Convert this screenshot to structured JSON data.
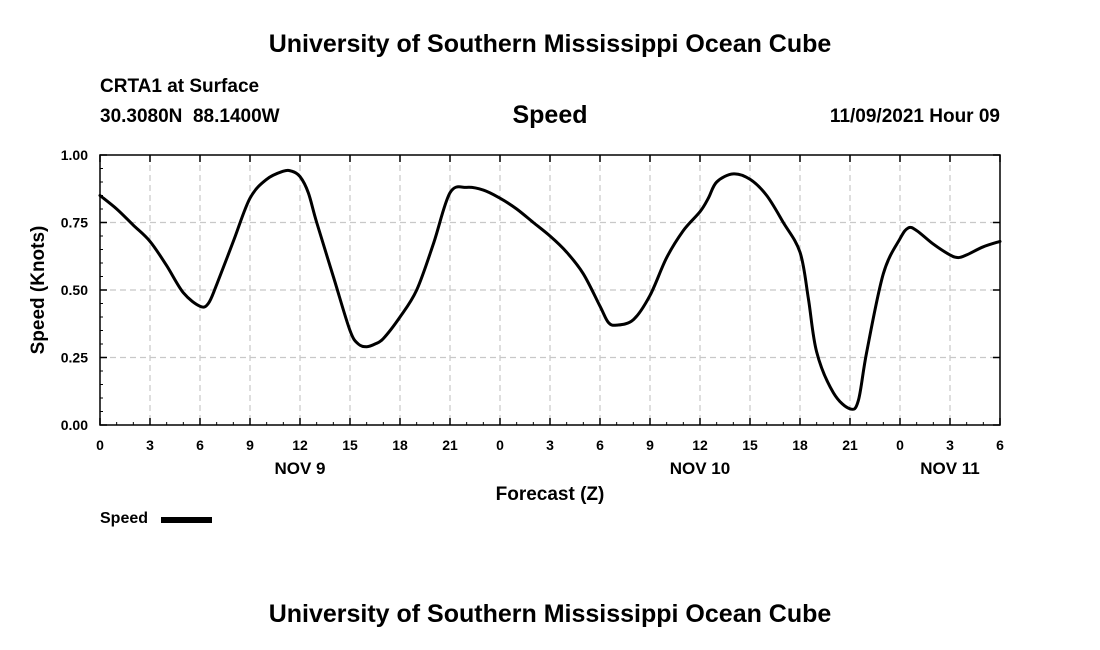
{
  "page_title": "University of Southern Mississippi Ocean Cube",
  "station": "CRTA1 at Surface",
  "coordinates": "30.3080N  88.1400W",
  "variable": "Speed",
  "issued": "11/09/2021 Hour 09",
  "footer_title": "University of Southern Mississippi Ocean Cube",
  "legend": {
    "label": "Speed"
  },
  "colors": {
    "line": "#000000",
    "grid": "#c8c8c8",
    "background": "#ffffff"
  },
  "chart_data": {
    "type": "line",
    "title": "Speed",
    "xlabel": "Forecast (Z)",
    "ylabel": "Speed (Knots)",
    "xlim": [
      0,
      54
    ],
    "ylim": [
      0,
      1
    ],
    "grid": true,
    "legend_position": "bottom-left",
    "x_ticks": [
      0,
      3,
      6,
      9,
      12,
      15,
      18,
      21,
      24,
      27,
      30,
      33,
      36,
      39,
      42,
      45,
      48,
      51,
      54
    ],
    "x_tick_labels": [
      "0",
      "3",
      "6",
      "9",
      "12",
      "15",
      "18",
      "21",
      "0",
      "3",
      "6",
      "9",
      "12",
      "15",
      "18",
      "21",
      "0",
      "3",
      "6"
    ],
    "y_ticks": [
      0,
      0.25,
      0.5,
      0.75,
      1.0
    ],
    "y_tick_labels": [
      "0.00",
      "0.25",
      "0.50",
      "0.75",
      "1.00"
    ],
    "date_labels": [
      {
        "x": 12,
        "label": "NOV 9"
      },
      {
        "x": 36,
        "label": "NOV 10"
      },
      {
        "x": 51,
        "label": "NOV 11"
      }
    ],
    "series": [
      {
        "name": "Speed",
        "x": [
          0,
          1,
          2,
          3,
          4,
          5,
          6,
          6.5,
          7,
          8,
          9,
          10,
          11,
          11.5,
          12,
          12.5,
          13,
          14,
          15,
          15.5,
          16,
          16.5,
          17,
          18,
          19,
          20,
          21,
          22,
          23,
          24,
          25,
          26,
          27,
          28,
          29,
          30,
          30.5,
          31,
          32,
          33,
          34,
          35,
          36,
          36.5,
          37,
          38,
          39,
          40,
          41,
          42,
          42.5,
          43,
          44,
          45,
          45.5,
          46,
          47,
          48,
          48.5,
          49,
          50,
          51,
          51.5,
          52,
          53,
          54
        ],
        "values": [
          0.85,
          0.8,
          0.74,
          0.68,
          0.59,
          0.49,
          0.44,
          0.45,
          0.52,
          0.68,
          0.84,
          0.91,
          0.94,
          0.94,
          0.92,
          0.86,
          0.75,
          0.55,
          0.35,
          0.3,
          0.29,
          0.3,
          0.32,
          0.4,
          0.5,
          0.67,
          0.86,
          0.88,
          0.87,
          0.84,
          0.8,
          0.75,
          0.7,
          0.64,
          0.56,
          0.44,
          0.38,
          0.37,
          0.39,
          0.48,
          0.62,
          0.72,
          0.79,
          0.84,
          0.9,
          0.93,
          0.91,
          0.85,
          0.75,
          0.64,
          0.47,
          0.27,
          0.12,
          0.06,
          0.09,
          0.27,
          0.56,
          0.69,
          0.73,
          0.72,
          0.67,
          0.63,
          0.62,
          0.63,
          0.66,
          0.68
        ]
      }
    ]
  }
}
